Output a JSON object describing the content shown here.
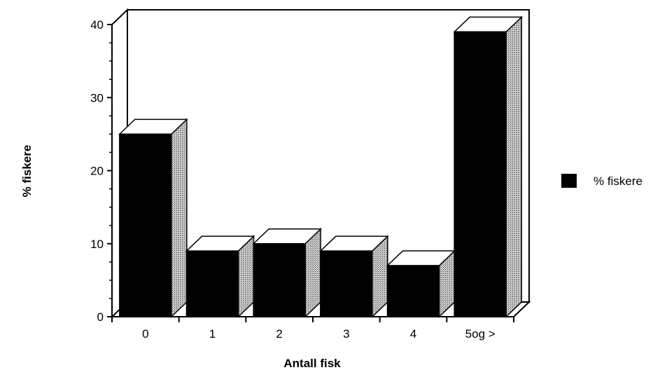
{
  "chart_data": {
    "type": "bar",
    "style": "3d",
    "categories": [
      "0",
      "1",
      "2",
      "3",
      "4",
      "5og >"
    ],
    "series": [
      {
        "name": "% fiskere",
        "values": [
          25,
          9,
          10,
          9,
          7,
          39
        ]
      }
    ],
    "xlabel": "Antall fisk",
    "ylabel": "% fiskere",
    "ylim": [
      0,
      40
    ],
    "yticks": [
      "0",
      "10",
      "20",
      "30",
      "40"
    ],
    "grid": false,
    "legend": "right",
    "colors": {
      "bar_front": "#000000",
      "bar_top": "#ffffff",
      "bar_side": "#a8a8a8",
      "axis": "#000000"
    }
  }
}
